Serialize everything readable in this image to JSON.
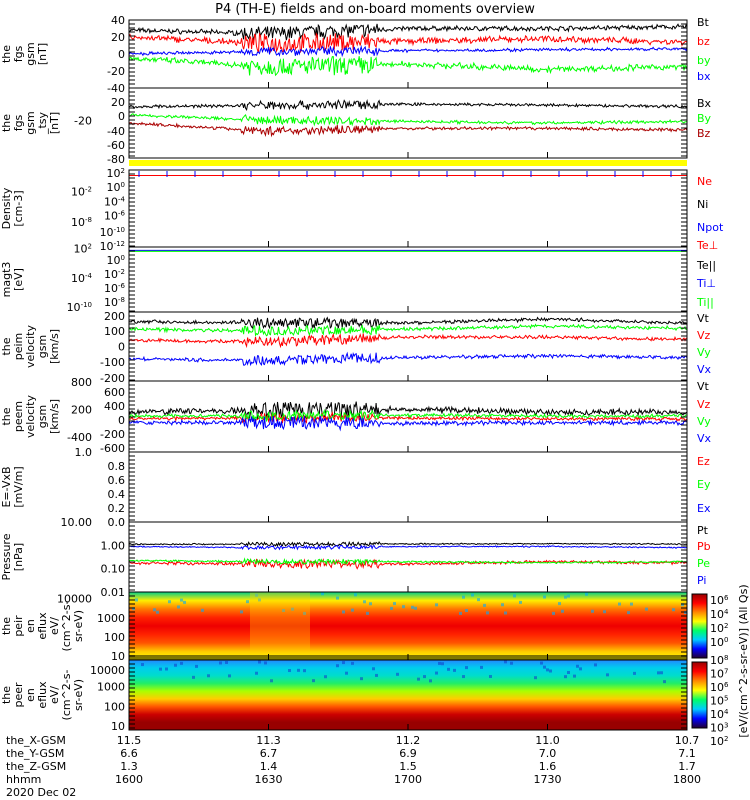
{
  "title": "P4 (TH-E) fields and on-board moments overview",
  "chart_data": [
    {
      "type": "line",
      "ylabel": [
        "the",
        "fgs",
        "gsm",
        "[nT]"
      ],
      "scale": "linear",
      "ylim": [
        -40,
        40
      ],
      "ticks": [
        "40",
        "20",
        "0",
        "-20",
        "-40"
      ],
      "tickvals": [
        40,
        20,
        0,
        -20,
        -40
      ],
      "series": [
        {
          "name": "Bt",
          "color": "#000000",
          "values": [
            28,
            24,
            30,
            30,
            32
          ],
          "noise": 3
        },
        {
          "name": "bz",
          "color": "#ff0000",
          "values": [
            20,
            12,
            15,
            18,
            14
          ],
          "noise": 4
        },
        {
          "name": "by",
          "color": "#00ff00",
          "values": [
            -5,
            -15,
            -12,
            -18,
            -15
          ],
          "noise": 4
        },
        {
          "name": "bx",
          "color": "#0000ff",
          "values": [
            0,
            3,
            4,
            5,
            6
          ],
          "noise": 2
        }
      ]
    },
    {
      "type": "line",
      "ylabel": [
        "the",
        "fgs",
        "gsm",
        "_tsy",
        "[nT]"
      ],
      "scale": "linear",
      "ylim": [
        -90,
        40
      ],
      "ticks": [
        "20",
        "0",
        "-20",
        "-40",
        "-60",
        "-80"
      ],
      "tickvals": [
        20,
        0,
        -20,
        -40,
        -60,
        -80
      ],
      "series": [
        {
          "name": "Bx",
          "color": "#000000",
          "values": [
            5,
            8,
            10,
            8,
            6
          ],
          "noise": 3
        },
        {
          "name": "By",
          "color": "#00ff00",
          "values": [
            -10,
            -20,
            -22,
            -25,
            -22
          ],
          "noise": 3
        },
        {
          "name": "Bz",
          "color": "#aa0000",
          "values": [
            -25,
            -40,
            -35,
            -35,
            -38
          ],
          "noise": 3
        }
      ]
    },
    {
      "type": "line",
      "ylabel": [
        "Density",
        "[cm-3]"
      ],
      "scale": "log",
      "ylim": [
        -13,
        2.3
      ],
      "ticks": [
        "10^2",
        "10^0",
        "10^-2",
        "10^-4",
        "10^-6",
        "10^-8",
        "10^-10",
        "10^-12"
      ],
      "tickvals": [
        2,
        0,
        -2,
        -4,
        -6,
        -8,
        -10,
        -12
      ],
      "series": [
        {
          "name": "Ne",
          "color": "#ff0000",
          "values": [
            1.2,
            1.2,
            1.2,
            1.2,
            1.2
          ],
          "noise": 0
        },
        {
          "name": "Ni",
          "color": "#000000",
          "values": [],
          "noise": 0
        },
        {
          "name": "Npot",
          "color": "#0000ff",
          "values": [],
          "noise": 0
        }
      ]
    },
    {
      "type": "line",
      "ylabel": [
        "magt3",
        "[eV]"
      ],
      "scale": "log",
      "ylim": [
        -11,
        2.3
      ],
      "ticks": [
        "10^2",
        "10^0",
        "10^-2",
        "10^-4",
        "10^-6",
        "10^-8",
        "10^-10"
      ],
      "tickvals": [
        2,
        0,
        -2,
        -4,
        -6,
        -8,
        -10
      ],
      "series": [
        {
          "name": "Te⊥",
          "color": "#ff0000",
          "values": [],
          "noise": 0
        },
        {
          "name": "Te||",
          "color": "#000000",
          "values": [],
          "noise": 0
        },
        {
          "name": "Ti⊥",
          "color": "#0000ff",
          "values": [
            1.6,
            1.6,
            1.6,
            1.6,
            1.6
          ],
          "noise": 0
        },
        {
          "name": "Ti||",
          "color": "#00ff00",
          "values": [
            1.4,
            1.4,
            1.4,
            1.4,
            1.4
          ],
          "noise": 0
        }
      ]
    },
    {
      "type": "line",
      "ylabel": [
        "the",
        "peim",
        "velocity",
        "gsm",
        "[km/s]"
      ],
      "scale": "linear",
      "ylim": [
        -220,
        220
      ],
      "ticks": [
        "200",
        "100",
        "0",
        "-100",
        "-200"
      ],
      "tickvals": [
        200,
        100,
        0,
        -100,
        -200
      ],
      "series": [
        {
          "name": "Vt",
          "color": "#000000",
          "values": [
            160,
            150,
            150,
            175,
            150
          ],
          "noise": 12
        },
        {
          "name": "Vz",
          "color": "#ff0000",
          "values": [
            40,
            30,
            60,
            60,
            45
          ],
          "noise": 12
        },
        {
          "name": "Vy",
          "color": "#00ff00",
          "values": [
            110,
            100,
            110,
            130,
            115
          ],
          "noise": 12
        },
        {
          "name": "Vx",
          "color": "#0000ff",
          "values": [
            -80,
            -90,
            -70,
            -60,
            -70
          ],
          "noise": 12
        }
      ]
    },
    {
      "type": "line",
      "ylabel": [
        "the",
        "peem",
        "velocity",
        "gsm",
        "[km/s]"
      ],
      "scale": "linear",
      "ylim": [
        -720,
        820
      ],
      "ticks": [
        "800",
        "600",
        "400",
        "200",
        "0",
        "-200",
        "-400",
        "-600"
      ],
      "tickvals": [
        800,
        600,
        400,
        200,
        0,
        -200,
        -400,
        -600
      ],
      "series": [
        {
          "name": "Vt",
          "color": "#000000",
          "values": [
            150,
            180,
            200,
            150,
            150
          ],
          "noise": 70
        },
        {
          "name": "Vz",
          "color": "#ff0000",
          "values": [
            0,
            20,
            20,
            0,
            0
          ],
          "noise": 40
        },
        {
          "name": "Vy",
          "color": "#00ff00",
          "values": [
            60,
            60,
            80,
            60,
            60
          ],
          "noise": 40
        },
        {
          "name": "Vx",
          "color": "#0000ff",
          "values": [
            -80,
            -80,
            -100,
            -80,
            -80
          ],
          "noise": 50
        }
      ]
    },
    {
      "type": "line",
      "ylabel": [
        "E=-VxB",
        "[mV/m]"
      ],
      "scale": "linear",
      "ylim": [
        0,
        1
      ],
      "ticks": [
        "1.0",
        "0.8",
        "0.6",
        "0.4",
        "0.2",
        "0.0"
      ],
      "tickvals": [
        1,
        0.8,
        0.6,
        0.4,
        0.2,
        0
      ],
      "series": [
        {
          "name": "Ez",
          "color": "#ff0000",
          "values": [],
          "noise": 0
        },
        {
          "name": "Ey",
          "color": "#00ff00",
          "values": [],
          "noise": 0
        },
        {
          "name": "Ex",
          "color": "#0000ff",
          "values": [],
          "noise": 0
        }
      ]
    },
    {
      "type": "line",
      "ylabel": [
        "Pressure",
        "[nPa]"
      ],
      "scale": "log",
      "ylim": [
        -2,
        1
      ],
      "ticks": [
        "10.00",
        "1.00",
        "0.10",
        "0.01"
      ],
      "tickvals": [
        1,
        0,
        -1,
        -2
      ],
      "series": [
        {
          "name": "Pt",
          "color": "#000000",
          "values": [
            0.05,
            0.05,
            0.06,
            0.07,
            0.05
          ],
          "noise": 0.03
        },
        {
          "name": "Pb",
          "color": "#ff0000",
          "values": [
            -0.75,
            -0.8,
            -0.8,
            -0.7,
            -0.75
          ],
          "noise": 0.07
        },
        {
          "name": "Pe",
          "color": "#00ff00",
          "values": [
            -0.65,
            -0.7,
            -0.7,
            -0.75,
            -0.7
          ],
          "noise": 0.04
        },
        {
          "name": "Pi",
          "color": "#0000ff",
          "values": [
            -0.05,
            -0.1,
            -0.05,
            -0.05,
            -0.1
          ],
          "noise": 0.03
        }
      ]
    },
    {
      "type": "heatmap",
      "ylabel": [
        "the",
        "peir",
        "en",
        "eflux",
        "eV/",
        "(cm^2-s-",
        "sr-eV)"
      ],
      "scale": "log",
      "ylim": [
        0.8,
        4.35
      ],
      "ticks": [
        "10000",
        "1000",
        "100",
        "10"
      ],
      "tickvals": [
        4,
        3,
        2,
        1
      ],
      "colorbar": {
        "ticks": [
          "10^6",
          "10^4",
          "10^2",
          "10^0"
        ],
        "range_log": [
          0,
          7.5
        ]
      },
      "profile": [
        "#00cc88",
        "#ffee00",
        "#ff7700",
        "#ff2200",
        "#ee0000",
        "#ff2200",
        "#ff5500",
        "#ffcc00",
        "#ffff00"
      ]
    },
    {
      "type": "heatmap",
      "ylabel": [
        "the",
        "peer",
        "en",
        "eflux",
        "eV/",
        "(cm^2-s-",
        "sr-eV)"
      ],
      "scale": "log",
      "ylim": [
        0.8,
        4.35
      ],
      "ticks": [
        "10000",
        "1000",
        "100",
        "10"
      ],
      "tickvals": [
        4,
        3,
        2,
        1
      ],
      "colorbar": {
        "ticks": [
          "10^8",
          "10^7",
          "10^6",
          "10^5",
          "10^4",
          "10^3",
          "10^2"
        ],
        "range_log": [
          1.6,
          8.5
        ]
      },
      "profile": [
        "#2288ff",
        "#00ccee",
        "#00ddcc",
        "#22ee66",
        "#aaff00",
        "#ffcc00",
        "#ff5500",
        "#cc0000",
        "#990000",
        "#990000"
      ]
    }
  ],
  "colorbar_label": "[eV/(cm^2-s-sr-eV)] (All Qs)",
  "xaxis": {
    "rows": [
      {
        "label": "the_X-GSM",
        "values": [
          "11.5",
          "11.3",
          "11.2",
          "11.0",
          "10.7"
        ]
      },
      {
        "label": "the_Y-GSM",
        "values": [
          "6.6",
          "6.7",
          "6.9",
          "7.0",
          "7.1"
        ]
      },
      {
        "label": "the_Z-GSM",
        "values": [
          "1.3",
          "1.4",
          "1.5",
          "1.6",
          "1.7"
        ]
      },
      {
        "label": "hhmm",
        "values": [
          "1600",
          "1630",
          "1700",
          "1730",
          "1800"
        ]
      }
    ],
    "date": "2020 Dec 02"
  }
}
